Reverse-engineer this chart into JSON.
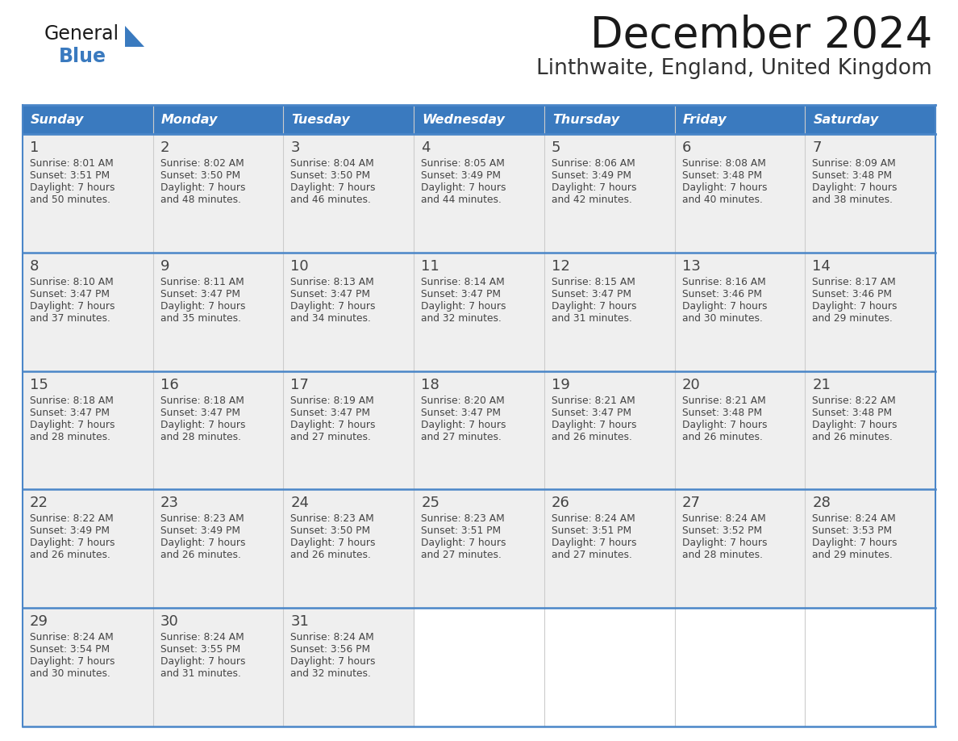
{
  "title": "December 2024",
  "subtitle": "Linthwaite, England, United Kingdom",
  "days_of_week": [
    "Sunday",
    "Monday",
    "Tuesday",
    "Wednesday",
    "Thursday",
    "Friday",
    "Saturday"
  ],
  "header_bg_color": "#3a7abf",
  "header_text_color": "#ffffff",
  "cell_bg_color": "#efefef",
  "cell_bg_empty": "#ffffff",
  "day_number_color": "#444444",
  "text_color": "#333333",
  "title_color": "#222222",
  "border_color": "#4a86c8",
  "row_sep_color": "#4a86c8",
  "col_sep_color": "#cccccc",
  "weeks": [
    [
      {
        "day": 1,
        "sunrise": "8:01 AM",
        "sunset": "3:51 PM",
        "daylight": "7 hours and 50 minutes"
      },
      {
        "day": 2,
        "sunrise": "8:02 AM",
        "sunset": "3:50 PM",
        "daylight": "7 hours and 48 minutes"
      },
      {
        "day": 3,
        "sunrise": "8:04 AM",
        "sunset": "3:50 PM",
        "daylight": "7 hours and 46 minutes"
      },
      {
        "day": 4,
        "sunrise": "8:05 AM",
        "sunset": "3:49 PM",
        "daylight": "7 hours and 44 minutes"
      },
      {
        "day": 5,
        "sunrise": "8:06 AM",
        "sunset": "3:49 PM",
        "daylight": "7 hours and 42 minutes"
      },
      {
        "day": 6,
        "sunrise": "8:08 AM",
        "sunset": "3:48 PM",
        "daylight": "7 hours and 40 minutes"
      },
      {
        "day": 7,
        "sunrise": "8:09 AM",
        "sunset": "3:48 PM",
        "daylight": "7 hours and 38 minutes"
      }
    ],
    [
      {
        "day": 8,
        "sunrise": "8:10 AM",
        "sunset": "3:47 PM",
        "daylight": "7 hours and 37 minutes"
      },
      {
        "day": 9,
        "sunrise": "8:11 AM",
        "sunset": "3:47 PM",
        "daylight": "7 hours and 35 minutes"
      },
      {
        "day": 10,
        "sunrise": "8:13 AM",
        "sunset": "3:47 PM",
        "daylight": "7 hours and 34 minutes"
      },
      {
        "day": 11,
        "sunrise": "8:14 AM",
        "sunset": "3:47 PM",
        "daylight": "7 hours and 32 minutes"
      },
      {
        "day": 12,
        "sunrise": "8:15 AM",
        "sunset": "3:47 PM",
        "daylight": "7 hours and 31 minutes"
      },
      {
        "day": 13,
        "sunrise": "8:16 AM",
        "sunset": "3:46 PM",
        "daylight": "7 hours and 30 minutes"
      },
      {
        "day": 14,
        "sunrise": "8:17 AM",
        "sunset": "3:46 PM",
        "daylight": "7 hours and 29 minutes"
      }
    ],
    [
      {
        "day": 15,
        "sunrise": "8:18 AM",
        "sunset": "3:47 PM",
        "daylight": "7 hours and 28 minutes"
      },
      {
        "day": 16,
        "sunrise": "8:18 AM",
        "sunset": "3:47 PM",
        "daylight": "7 hours and 28 minutes"
      },
      {
        "day": 17,
        "sunrise": "8:19 AM",
        "sunset": "3:47 PM",
        "daylight": "7 hours and 27 minutes"
      },
      {
        "day": 18,
        "sunrise": "8:20 AM",
        "sunset": "3:47 PM",
        "daylight": "7 hours and 27 minutes"
      },
      {
        "day": 19,
        "sunrise": "8:21 AM",
        "sunset": "3:47 PM",
        "daylight": "7 hours and 26 minutes"
      },
      {
        "day": 20,
        "sunrise": "8:21 AM",
        "sunset": "3:48 PM",
        "daylight": "7 hours and 26 minutes"
      },
      {
        "day": 21,
        "sunrise": "8:22 AM",
        "sunset": "3:48 PM",
        "daylight": "7 hours and 26 minutes"
      }
    ],
    [
      {
        "day": 22,
        "sunrise": "8:22 AM",
        "sunset": "3:49 PM",
        "daylight": "7 hours and 26 minutes"
      },
      {
        "day": 23,
        "sunrise": "8:23 AM",
        "sunset": "3:49 PM",
        "daylight": "7 hours and 26 minutes"
      },
      {
        "day": 24,
        "sunrise": "8:23 AM",
        "sunset": "3:50 PM",
        "daylight": "7 hours and 26 minutes"
      },
      {
        "day": 25,
        "sunrise": "8:23 AM",
        "sunset": "3:51 PM",
        "daylight": "7 hours and 27 minutes"
      },
      {
        "day": 26,
        "sunrise": "8:24 AM",
        "sunset": "3:51 PM",
        "daylight": "7 hours and 27 minutes"
      },
      {
        "day": 27,
        "sunrise": "8:24 AM",
        "sunset": "3:52 PM",
        "daylight": "7 hours and 28 minutes"
      },
      {
        "day": 28,
        "sunrise": "8:24 AM",
        "sunset": "3:53 PM",
        "daylight": "7 hours and 29 minutes"
      }
    ],
    [
      {
        "day": 29,
        "sunrise": "8:24 AM",
        "sunset": "3:54 PM",
        "daylight": "7 hours and 30 minutes"
      },
      {
        "day": 30,
        "sunrise": "8:24 AM",
        "sunset": "3:55 PM",
        "daylight": "7 hours and 31 minutes"
      },
      {
        "day": 31,
        "sunrise": "8:24 AM",
        "sunset": "3:56 PM",
        "daylight": "7 hours and 32 minutes"
      },
      null,
      null,
      null,
      null
    ]
  ]
}
